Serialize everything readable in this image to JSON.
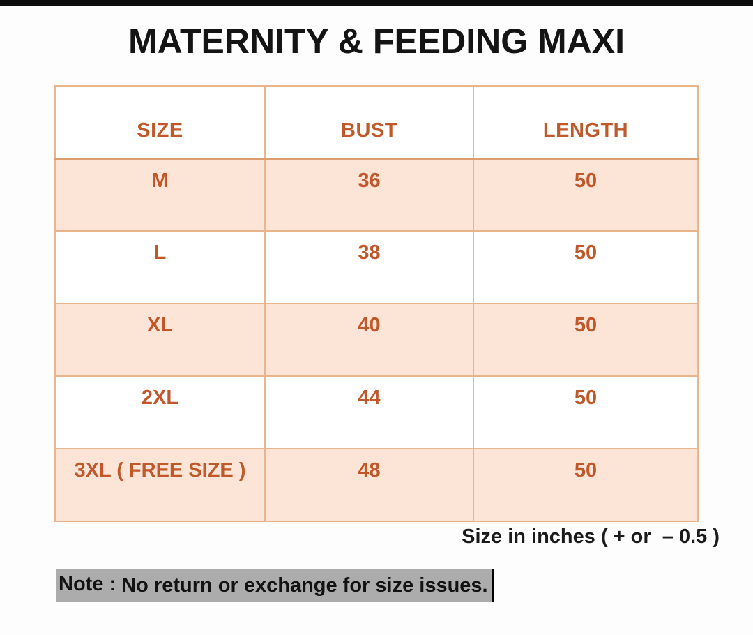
{
  "title": "MATERNITY & FEEDING MAXI",
  "size_chart": {
    "columns": [
      "SIZE",
      "BUST",
      "LENGTH"
    ],
    "rows": [
      {
        "size": "M",
        "bust": "36",
        "length": "50"
      },
      {
        "size": "L",
        "bust": "38",
        "length": "50"
      },
      {
        "size": "XL",
        "bust": "40",
        "length": "50"
      },
      {
        "size": "2XL",
        "bust": "44",
        "length": "50"
      },
      {
        "size": "3XL ( FREE SIZE )",
        "bust": "48",
        "length": "50"
      }
    ]
  },
  "footnote": "Size in inches ( + or  – 0.5 )",
  "note": {
    "label": "Note :",
    "text": " No return or exchange for size issues."
  },
  "colors": {
    "accent_text": "#C0582A",
    "row_fill": "#FCE4D6",
    "table_border": "#EAB58C",
    "note_highlight": "#ACACAC",
    "note_underline": "#2F5597",
    "title_text": "#141414",
    "top_strip": "#0C0C0C"
  }
}
